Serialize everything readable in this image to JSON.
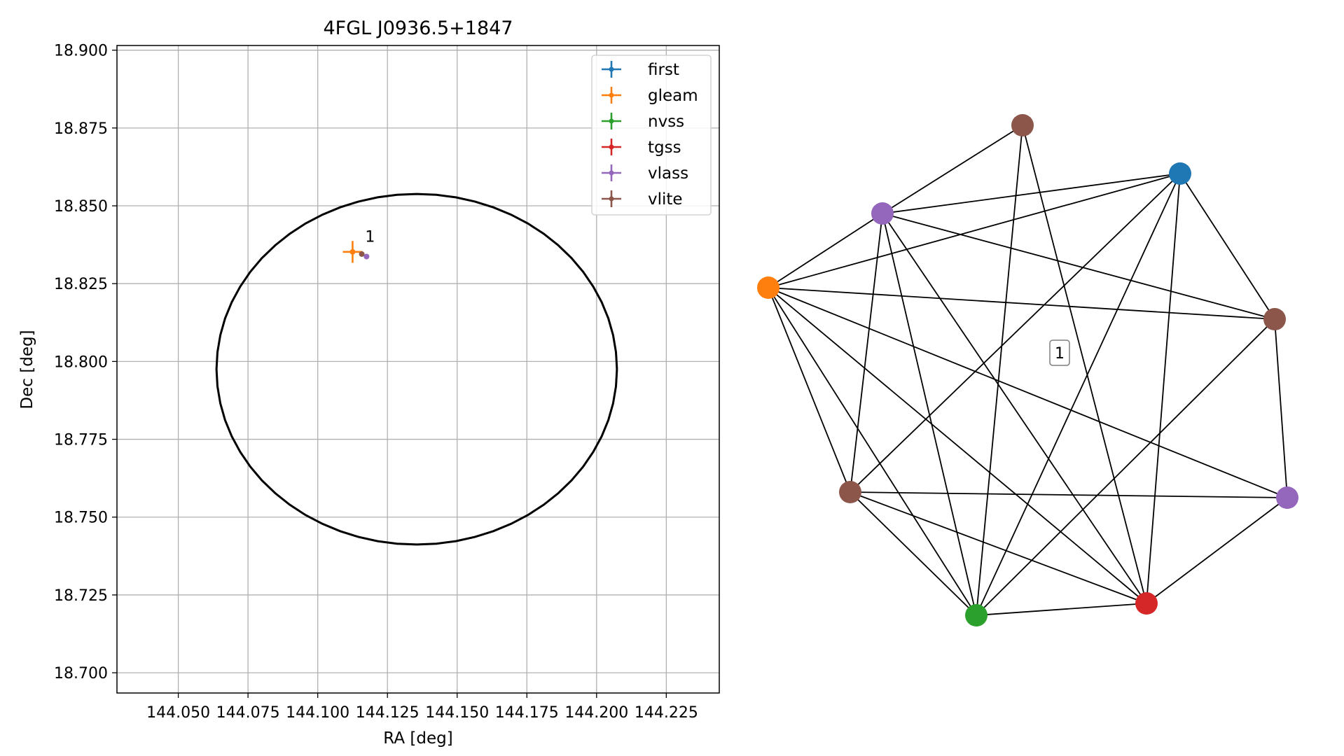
{
  "chart_data": [
    {
      "type": "scatter",
      "title": "4FGL J0936.5+1847",
      "xlabel": "RA [deg]",
      "ylabel": "Dec [deg]",
      "xlim": [
        144.028,
        144.244
      ],
      "ylim": [
        18.6935,
        18.9015
      ],
      "xticks": [
        "144.050",
        "144.075",
        "144.100",
        "144.125",
        "144.150",
        "144.175",
        "144.200",
        "144.225"
      ],
      "yticks": [
        "18.700",
        "18.725",
        "18.750",
        "18.775",
        "18.800",
        "18.825",
        "18.850",
        "18.875",
        "18.900"
      ],
      "grid": true,
      "legend_position": "upper right",
      "series": [
        {
          "name": "first",
          "color": "#1f77b4",
          "points": []
        },
        {
          "name": "gleam",
          "color": "#ff7f0e",
          "points": [
            {
              "x": 144.1125,
              "y": 18.8352,
              "xerr": 0.0035,
              "yerr": 0.0035
            }
          ]
        },
        {
          "name": "nvss",
          "color": "#2ca02c",
          "points": []
        },
        {
          "name": "tgss",
          "color": "#d62728",
          "points": []
        },
        {
          "name": "vlass",
          "color": "#9467bd",
          "points": [
            {
              "x": 144.1175,
              "y": 18.8337,
              "xerr": 0.0002,
              "yerr": 0.0002
            }
          ]
        },
        {
          "name": "vlite",
          "color": "#8c564b",
          "points": [
            {
              "x": 144.1158,
              "y": 18.8345,
              "xerr": 0.0004,
              "yerr": 0.0004
            }
          ]
        }
      ],
      "annotations": [
        {
          "text": "1",
          "x": 144.1175,
          "y": 18.8375
        }
      ],
      "ellipse": {
        "center": [
          144.1355,
          18.7975
        ],
        "semi_axis_ra": 0.0718,
        "semi_axis_dec": 0.0563,
        "color": "#000000"
      }
    },
    {
      "type": "network",
      "label": "1",
      "nodes": [
        {
          "id": "n0",
          "color": "#8c564b"
        },
        {
          "id": "n1",
          "color": "#1f77b4"
        },
        {
          "id": "n2",
          "color": "#9467bd"
        },
        {
          "id": "n3",
          "color": "#ff7f0e"
        },
        {
          "id": "n4",
          "color": "#8c564b"
        },
        {
          "id": "n5",
          "color": "#8c564b"
        },
        {
          "id": "n6",
          "color": "#9467bd"
        },
        {
          "id": "n7",
          "color": "#2ca02c"
        },
        {
          "id": "n8",
          "color": "#d62728"
        }
      ],
      "edges": [
        [
          "n0",
          "n2"
        ],
        [
          "n0",
          "n7"
        ],
        [
          "n0",
          "n8"
        ],
        [
          "n1",
          "n2"
        ],
        [
          "n1",
          "n3"
        ],
        [
          "n1",
          "n4"
        ],
        [
          "n1",
          "n5"
        ],
        [
          "n1",
          "n7"
        ],
        [
          "n1",
          "n8"
        ],
        [
          "n2",
          "n3"
        ],
        [
          "n2",
          "n4"
        ],
        [
          "n2",
          "n5"
        ],
        [
          "n2",
          "n7"
        ],
        [
          "n2",
          "n8"
        ],
        [
          "n3",
          "n4"
        ],
        [
          "n3",
          "n5"
        ],
        [
          "n3",
          "n6"
        ],
        [
          "n3",
          "n7"
        ],
        [
          "n3",
          "n8"
        ],
        [
          "n4",
          "n6"
        ],
        [
          "n4",
          "n7"
        ],
        [
          "n5",
          "n6"
        ],
        [
          "n5",
          "n7"
        ],
        [
          "n5",
          "n8"
        ],
        [
          "n6",
          "n8"
        ],
        [
          "n7",
          "n8"
        ]
      ]
    }
  ]
}
